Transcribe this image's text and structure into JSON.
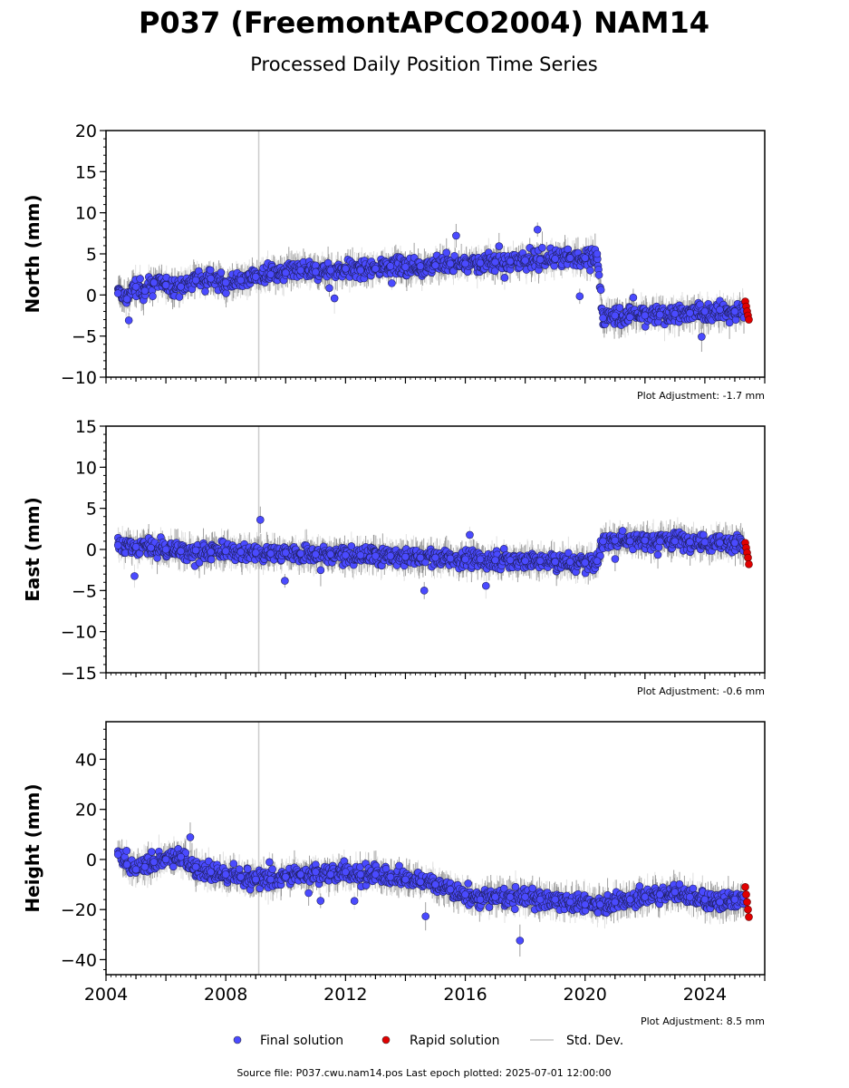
{
  "title": "P037 (FreemontAPCO2004) NAM14",
  "subtitle": "Processed Daily Position Time Series",
  "footer": "Source file: P037.cwu.nam14.pos  Last epoch plotted: 2025-07-01 12:00:00",
  "legend": [
    {
      "label": "Final solution",
      "color": "#4a4aff",
      "kind": "dot"
    },
    {
      "label": "Rapid solution",
      "color": "#e00000",
      "kind": "dot"
    },
    {
      "label": "Std. Dev.",
      "color": "#d3d3d3",
      "kind": "line"
    }
  ],
  "colors": {
    "final": "#4a4aff",
    "rapid": "#e00000",
    "stddev": "#d3d3d3",
    "marker_line": "#8a8a8a"
  },
  "chart_data": [
    {
      "type": "scatter",
      "ylabel": "North (mm)",
      "xlim": [
        2004.0,
        2026.0
      ],
      "ylim": [
        -10,
        20
      ],
      "yticks": [
        -10,
        -5,
        0,
        5,
        10,
        15,
        20
      ],
      "ytick_labels": [
        "−10",
        "−5",
        "0",
        "5",
        "10",
        "15",
        "20"
      ],
      "show_x_labels": false,
      "adjustment": "Plot Adjustment: -1.7 mm",
      "equipment_change_line": 2009.1,
      "series": [
        {
          "name": "Final solution",
          "x": [
            2004.4,
            2004.7,
            2005.0,
            2005.3,
            2005.6,
            2006.0,
            2006.5,
            2007.0,
            2007.5,
            2008.0,
            2008.5,
            2009.0,
            2009.5,
            2010.0,
            2010.5,
            2011.0,
            2011.5,
            2012.0,
            2012.5,
            2013.0,
            2013.5,
            2014.0,
            2014.5,
            2015.0,
            2015.5,
            2016.0,
            2016.5,
            2017.0,
            2017.5,
            2018.0,
            2018.5,
            2019.0,
            2019.5,
            2020.0,
            2020.4,
            2020.6,
            2021.0,
            2021.5,
            2022.0,
            2022.5,
            2023.0,
            2023.5,
            2024.0,
            2024.5,
            2025.0,
            2025.3
          ],
          "y": [
            0.2,
            -0.5,
            1.0,
            0.5,
            1.5,
            1.2,
            1.0,
            1.8,
            2.0,
            1.5,
            1.8,
            2.2,
            2.5,
            2.7,
            3.0,
            2.8,
            3.0,
            3.2,
            3.0,
            3.2,
            3.5,
            3.4,
            3.5,
            3.6,
            3.8,
            3.8,
            3.9,
            4.0,
            4.1,
            4.2,
            4.3,
            4.4,
            4.5,
            4.5,
            5.0,
            -2.8,
            -2.5,
            -2.7,
            -2.5,
            -2.4,
            -2.3,
            -2.2,
            -2.0,
            -1.8,
            -2.0,
            -1.9
          ]
        },
        {
          "name": "Rapid solution",
          "x": [
            2025.35,
            2025.38,
            2025.41,
            2025.44,
            2025.47
          ],
          "y": [
            -0.8,
            -1.4,
            -2.0,
            -2.5,
            -3.0
          ]
        }
      ]
    },
    {
      "type": "scatter",
      "ylabel": "East (mm)",
      "xlim": [
        2004.0,
        2026.0
      ],
      "ylim": [
        -15,
        15
      ],
      "yticks": [
        -15,
        -10,
        -5,
        0,
        5,
        10,
        15
      ],
      "ytick_labels": [
        "−15",
        "−10",
        "−5",
        "0",
        "5",
        "10",
        "15"
      ],
      "show_x_labels": false,
      "adjustment": "Plot Adjustment: -0.6 mm",
      "equipment_change_line": 2009.1,
      "series": [
        {
          "name": "Final solution",
          "x": [
            2004.4,
            2005.0,
            2005.5,
            2006.0,
            2006.5,
            2007.0,
            2007.5,
            2008.0,
            2008.5,
            2009.0,
            2009.5,
            2010.0,
            2010.5,
            2011.0,
            2011.5,
            2012.0,
            2012.5,
            2013.0,
            2013.5,
            2014.0,
            2014.5,
            2015.0,
            2015.5,
            2016.0,
            2016.5,
            2017.0,
            2017.5,
            2018.0,
            2018.5,
            2019.0,
            2019.5,
            2020.0,
            2020.4,
            2020.6,
            2021.0,
            2021.5,
            2022.0,
            2022.5,
            2023.0,
            2023.5,
            2024.0,
            2024.5,
            2025.0,
            2025.3
          ],
          "y": [
            0.5,
            0.3,
            0.2,
            0.0,
            -0.2,
            -0.1,
            -0.3,
            -0.2,
            -0.3,
            -0.4,
            -0.5,
            -0.4,
            -0.5,
            -0.6,
            -0.6,
            -0.7,
            -0.7,
            -0.8,
            -0.8,
            -0.9,
            -1.0,
            -1.0,
            -1.1,
            -1.2,
            -1.2,
            -1.3,
            -1.3,
            -1.4,
            -1.4,
            -1.5,
            -1.5,
            -1.6,
            -1.4,
            1.0,
            1.1,
            1.0,
            1.1,
            1.0,
            1.0,
            0.9,
            0.9,
            0.8,
            0.8,
            0.6
          ]
        },
        {
          "name": "Rapid solution",
          "x": [
            2025.35,
            2025.38,
            2025.41,
            2025.44,
            2025.47
          ],
          "y": [
            0.8,
            0.2,
            -0.4,
            -1.0,
            -1.8
          ]
        }
      ]
    },
    {
      "type": "scatter",
      "ylabel": "Height (mm)",
      "xlim": [
        2004.0,
        2026.0
      ],
      "ylim": [
        -46,
        55
      ],
      "yticks": [
        -40,
        -20,
        0,
        20,
        40
      ],
      "ytick_labels": [
        "−40",
        "−20",
        "0",
        "20",
        "40"
      ],
      "show_x_labels": true,
      "xticks": [
        2004,
        2008,
        2012,
        2016,
        2020,
        2024
      ],
      "xtick_labels": [
        "2004",
        "2008",
        "2012",
        "2016",
        "2020",
        "2024"
      ],
      "adjustment": "Plot Adjustment: 8.5 mm",
      "equipment_change_line": 2009.1,
      "series": [
        {
          "name": "Final solution",
          "x": [
            2004.4,
            2004.7,
            2005.0,
            2005.3,
            2005.6,
            2006.0,
            2006.5,
            2007.0,
            2007.5,
            2008.0,
            2008.5,
            2009.0,
            2009.5,
            2010.0,
            2010.5,
            2011.0,
            2011.5,
            2012.0,
            2012.5,
            2013.0,
            2013.5,
            2014.0,
            2014.5,
            2015.0,
            2015.5,
            2016.0,
            2016.5,
            2017.0,
            2017.5,
            2018.0,
            2018.5,
            2019.0,
            2019.5,
            2020.0,
            2020.5,
            2021.0,
            2021.5,
            2022.0,
            2022.5,
            2023.0,
            2023.5,
            2024.0,
            2024.5,
            2025.0,
            2025.3
          ],
          "y": [
            2,
            -2,
            -4,
            -3,
            -1,
            0,
            1,
            -3,
            -5,
            -6,
            -7,
            -8,
            -8,
            -7,
            -6,
            -5,
            -6,
            -5,
            -6,
            -6,
            -7,
            -8,
            -9,
            -10,
            -12,
            -14,
            -16,
            -15,
            -15,
            -15,
            -16,
            -16,
            -17,
            -18,
            -18,
            -17,
            -16,
            -15,
            -14,
            -13,
            -15,
            -16,
            -17,
            -16,
            -15
          ]
        },
        {
          "name": "Rapid solution",
          "x": [
            2025.35,
            2025.38,
            2025.41,
            2025.44,
            2025.47
          ],
          "y": [
            -11,
            -14,
            -17,
            -20,
            -23
          ]
        }
      ]
    }
  ]
}
